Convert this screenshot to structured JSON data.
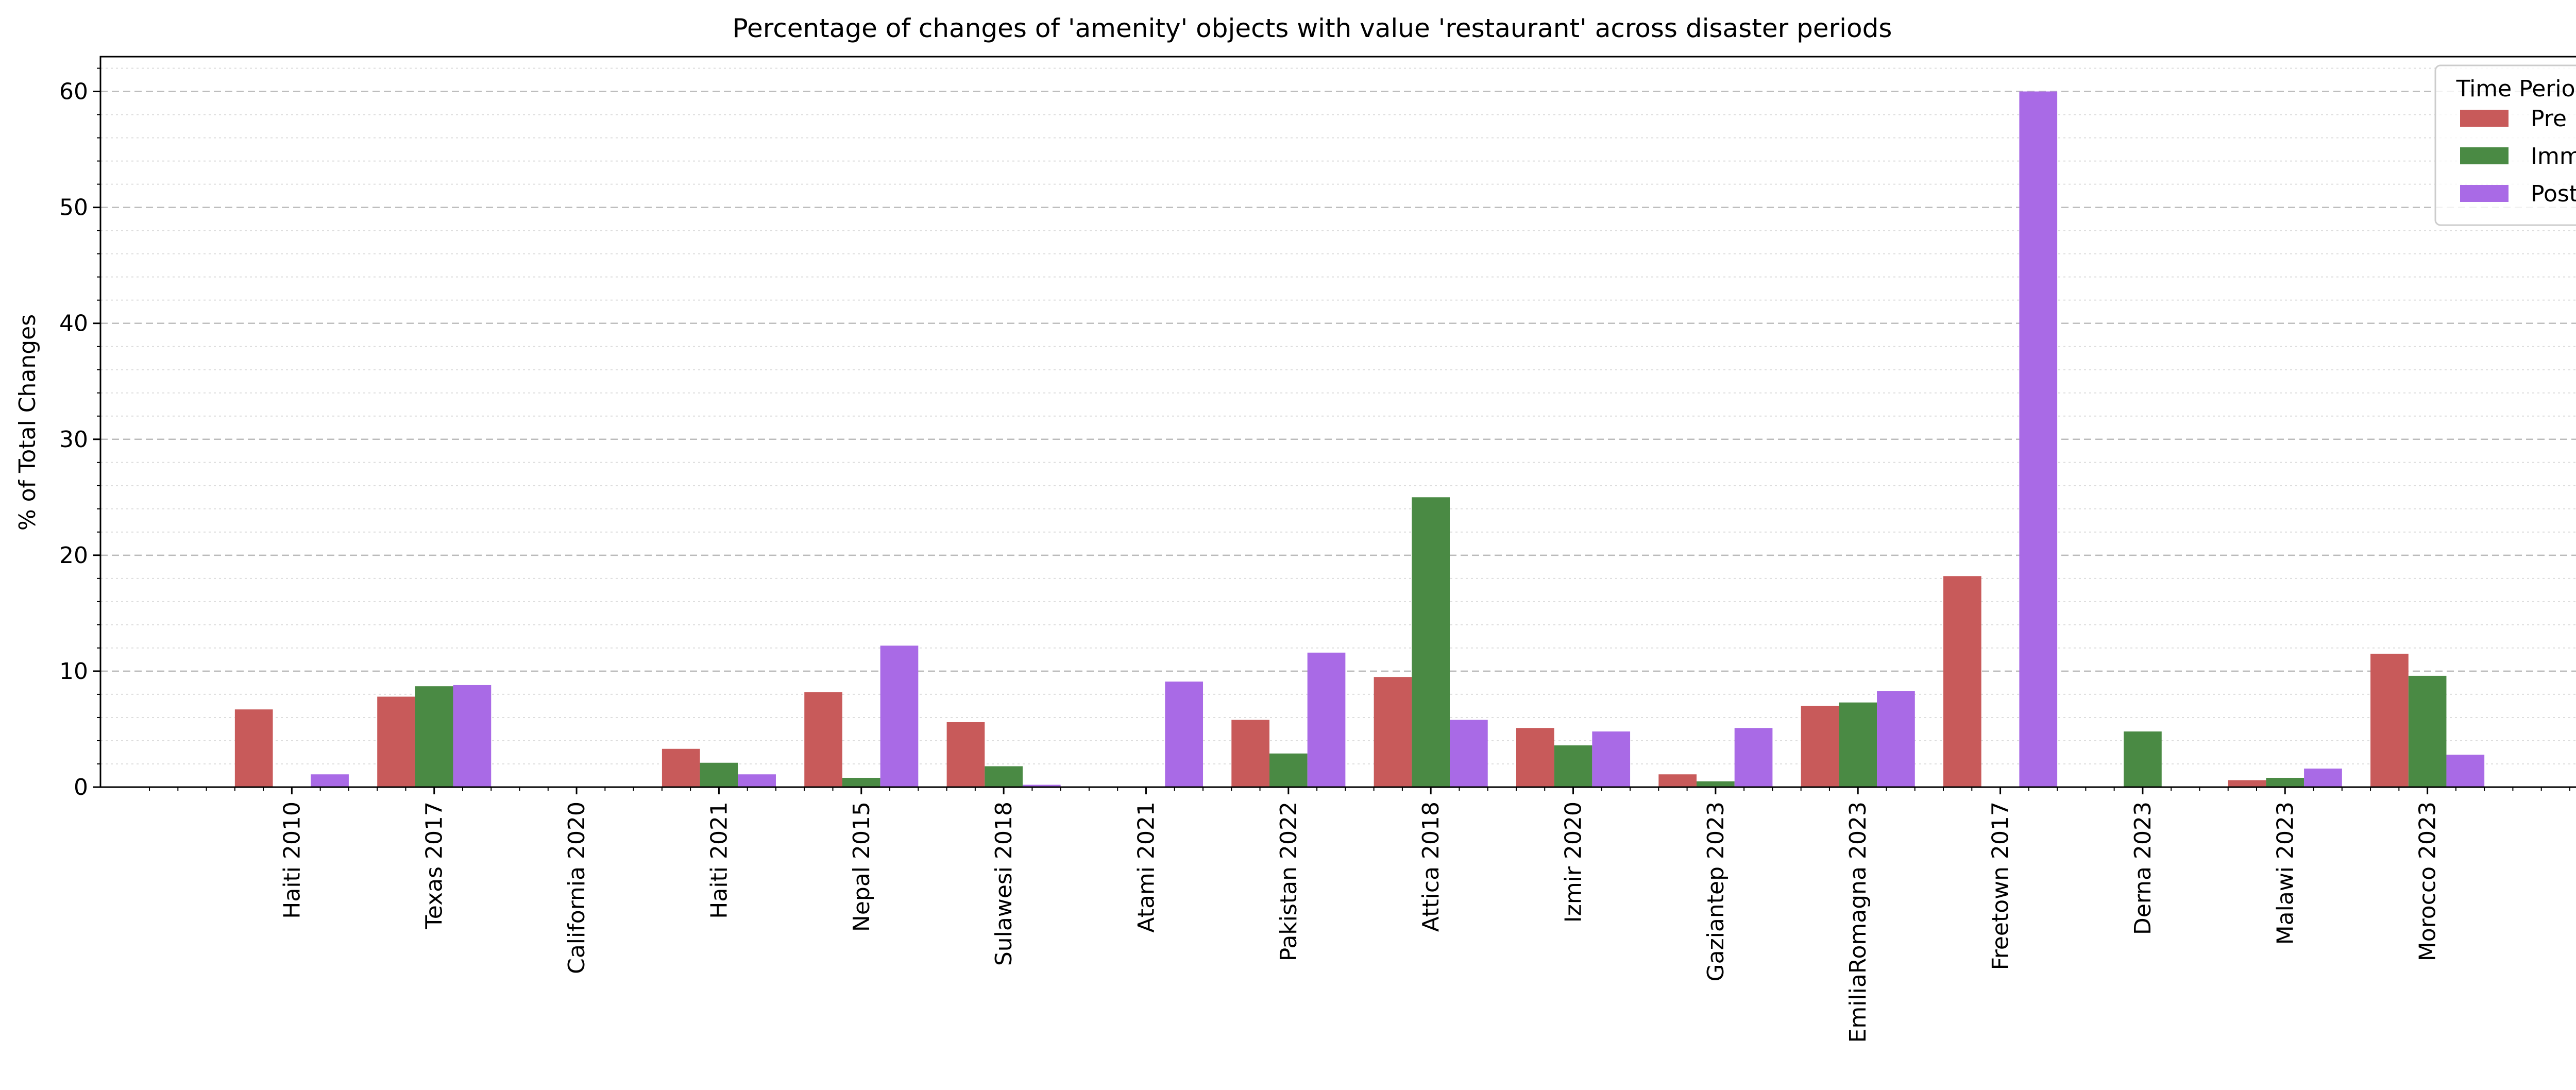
{
  "chart_data": {
    "type": "bar",
    "title": "Percentage of changes of 'amenity' objects with value 'restaurant' across disaster periods",
    "xlabel": "",
    "ylabel": "% of Total Changes",
    "ylim": [
      0,
      63
    ],
    "yticks": [
      0,
      10,
      20,
      30,
      40,
      50,
      60
    ],
    "grid": true,
    "legend": {
      "title": "Time Period",
      "placement": "top-right"
    },
    "categories": [
      "Haiti 2010",
      "Texas 2017",
      "California 2020",
      "Haiti 2021",
      "Nepal 2015",
      "Sulawesi 2018",
      "Atami 2021",
      "Pakistan 2022",
      "Attica 2018",
      "Izmir 2020",
      "Gaziantep 2023",
      "EmiliaRomagna 2023",
      "Freetown 2017",
      "Derna 2023",
      "Malawi 2023",
      "Morocco 2023"
    ],
    "series": [
      {
        "name": "Pre",
        "color": "#c85a5a",
        "values": [
          6.7,
          7.8,
          0,
          3.3,
          8.2,
          5.6,
          0,
          5.8,
          9.5,
          5.1,
          1.1,
          7.0,
          18.2,
          0,
          0.6,
          11.5
        ]
      },
      {
        "name": "Imm",
        "color": "#4a8a44",
        "values": [
          0,
          8.7,
          0,
          2.1,
          0.8,
          1.8,
          0,
          2.9,
          25.0,
          3.6,
          0.5,
          7.3,
          0,
          4.8,
          0.8,
          9.6
        ]
      },
      {
        "name": "Post",
        "color": "#a96ae6",
        "values": [
          1.1,
          8.8,
          0,
          1.1,
          12.2,
          0.2,
          9.1,
          11.6,
          5.8,
          4.8,
          5.1,
          8.3,
          60.0,
          0,
          1.6,
          2.8
        ]
      }
    ]
  }
}
